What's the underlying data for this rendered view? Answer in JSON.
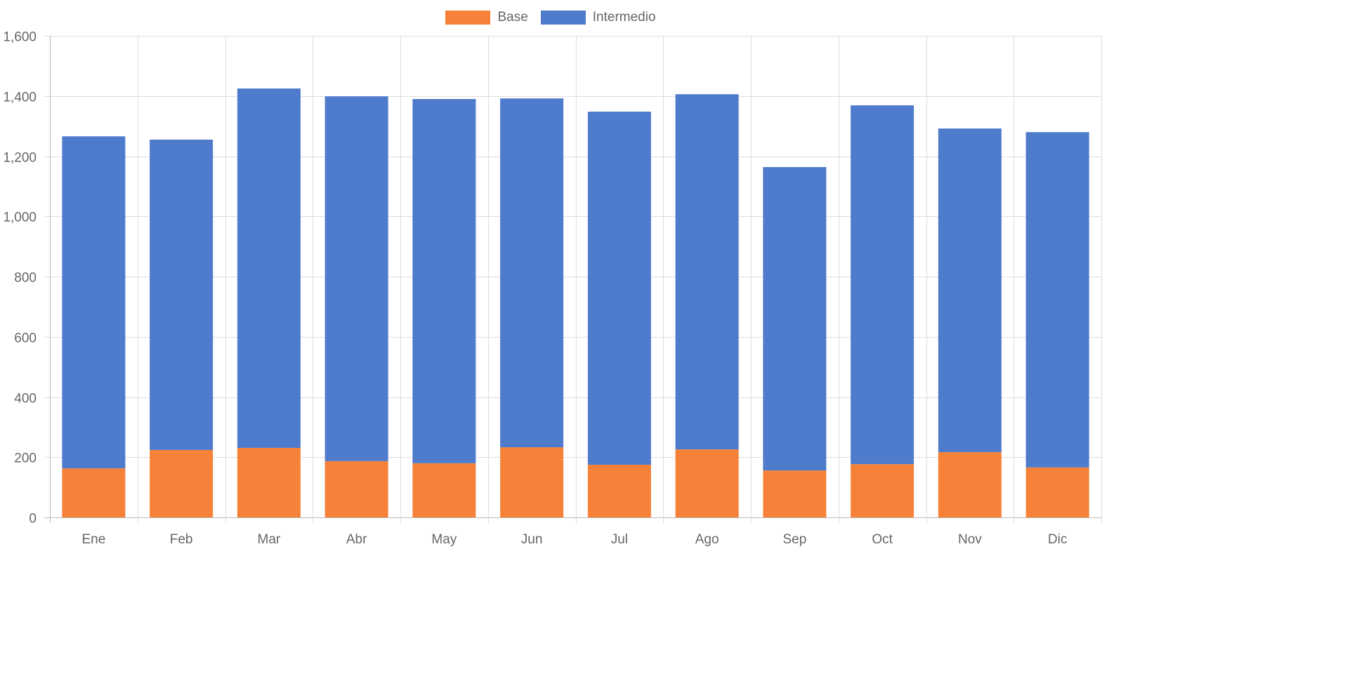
{
  "chart_data": {
    "type": "bar",
    "stacked": true,
    "title": "",
    "xlabel": "",
    "ylabel": "",
    "ylim": [
      0,
      1600
    ],
    "ytick_step": 200,
    "grid": true,
    "legend_position": "top-center",
    "categories": [
      "Ene",
      "Feb",
      "Mar",
      "Abr",
      "May",
      "Jun",
      "Jul",
      "Ago",
      "Sep",
      "Oct",
      "Nov",
      "Dic"
    ],
    "series": [
      {
        "name": "Base",
        "color": "#f58238",
        "values": [
          163,
          224,
          231,
          187,
          180,
          233,
          175,
          226,
          156,
          177,
          217,
          166
        ]
      },
      {
        "name": "Intermedio",
        "color": "#4f7bcc",
        "values": [
          1103,
          1031,
          1194,
          1212,
          1210,
          1159,
          1173,
          1180,
          1008,
          1192,
          1075,
          1114
        ]
      }
    ]
  }
}
